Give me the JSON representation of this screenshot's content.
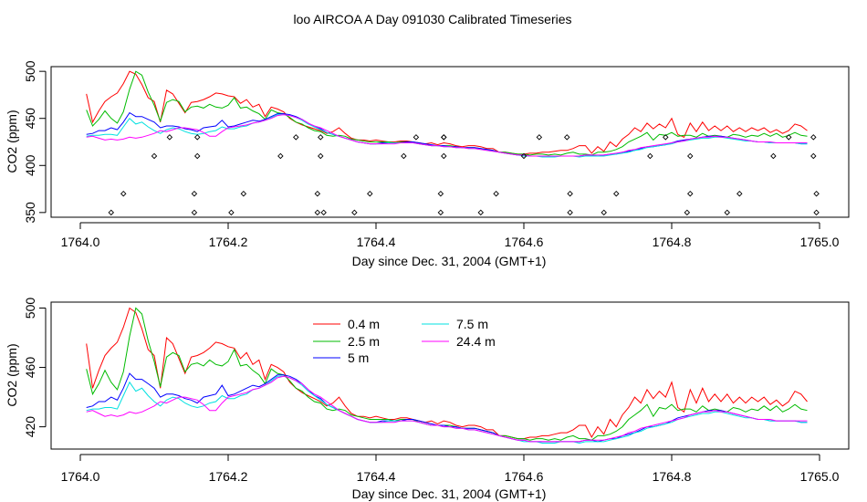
{
  "title": "loo AIRCOA A  Day 091030  Calibrated Timeseries",
  "colors": {
    "0.4 m": "#ff0000",
    "2.5 m": "#00bb00",
    "5 m": "#0000ff",
    "7.5 m": "#00e0e0",
    "24.4 m": "#ff00ff"
  },
  "chart_data": [
    {
      "type": "line",
      "xlabel": "Day since Dec. 31, 2004 (GMT+1)",
      "ylabel": "CO2 (ppm)",
      "xlim": [
        1764.0,
        1765.0
      ],
      "ylim": [
        345,
        505
      ],
      "xticks": [
        "1764.0",
        "1764.2",
        "1764.4",
        "1764.6",
        "1764.8",
        "1765.0"
      ],
      "yticks": [
        "350",
        "400",
        "450",
        "500"
      ],
      "x": [
        1764.0083,
        1764.0167,
        1764.025,
        1764.0333,
        1764.0417,
        1764.05,
        1764.0583,
        1764.0667,
        1764.075,
        1764.0833,
        1764.0917,
        1764.1,
        1764.1083,
        1764.1167,
        1764.125,
        1764.1333,
        1764.1417,
        1764.15,
        1764.1583,
        1764.1667,
        1764.175,
        1764.1833,
        1764.1917,
        1764.2,
        1764.2083,
        1764.2167,
        1764.225,
        1764.2333,
        1764.2417,
        1764.25,
        1764.2583,
        1764.2667,
        1764.275,
        1764.2833,
        1764.2917,
        1764.3,
        1764.3083,
        1764.3167,
        1764.325,
        1764.3333,
        1764.3417,
        1764.35,
        1764.3583,
        1764.3667,
        1764.375,
        1764.3833,
        1764.3917,
        1764.4,
        1764.4083,
        1764.4167,
        1764.425,
        1764.4333,
        1764.4417,
        1764.45,
        1764.4583,
        1764.4667,
        1764.475,
        1764.4833,
        1764.4917,
        1764.5,
        1764.5083,
        1764.5167,
        1764.525,
        1764.5333,
        1764.5417,
        1764.55,
        1764.5583,
        1764.5667,
        1764.575,
        1764.5833,
        1764.5917,
        1764.6,
        1764.6083,
        1764.6167,
        1764.625,
        1764.6333,
        1764.6417,
        1764.65,
        1764.6583,
        1764.6667,
        1764.675,
        1764.6833,
        1764.6917,
        1764.7,
        1764.7083,
        1764.7167,
        1764.725,
        1764.7333,
        1764.7417,
        1764.75,
        1764.7583,
        1764.7667,
        1764.775,
        1764.7833,
        1764.7917,
        1764.8,
        1764.8083,
        1764.8167,
        1764.825,
        1764.8333,
        1764.8417,
        1764.85,
        1764.8583,
        1764.8667,
        1764.875,
        1764.8833,
        1764.8917,
        1764.9,
        1764.9083,
        1764.9167,
        1764.925,
        1764.9333,
        1764.9417,
        1764.95,
        1764.9583,
        1764.9667,
        1764.975,
        1764.9833
      ],
      "series": [
        {
          "name": "0.4 m",
          "values": [
            476,
            446,
            458,
            468,
            473,
            477,
            487,
            500,
            497,
            486,
            472,
            468,
            446,
            480,
            476,
            466,
            456,
            467,
            468,
            470,
            473,
            477,
            476,
            474,
            473,
            466,
            470,
            462,
            465,
            452,
            462,
            460,
            457,
            450,
            446,
            443,
            441,
            439,
            437,
            434,
            436,
            440,
            434,
            429,
            427,
            427,
            426,
            427,
            426,
            425,
            425,
            426,
            426,
            425,
            424,
            423,
            424,
            422,
            424,
            423,
            421,
            420,
            421,
            421,
            420,
            418,
            418,
            414,
            414,
            413,
            412,
            412,
            413,
            413,
            414,
            414,
            415,
            416,
            416,
            418,
            421,
            421,
            413,
            420,
            415,
            425,
            420,
            428,
            433,
            440,
            436,
            445,
            439,
            444,
            440,
            450,
            433,
            430,
            445,
            436,
            446,
            437,
            442,
            437,
            442,
            436,
            440,
            436,
            440,
            437,
            440,
            435,
            438,
            434,
            437,
            444,
            442,
            437
          ]
        },
        {
          "name": "2.5 m",
          "values": [
            459,
            442,
            449,
            458,
            450,
            445,
            457,
            481,
            500,
            496,
            478,
            464,
            447,
            467,
            470,
            468,
            457,
            462,
            463,
            461,
            465,
            462,
            461,
            464,
            472,
            461,
            462,
            458,
            455,
            449,
            459,
            456,
            455,
            451,
            446,
            444,
            440,
            437,
            436,
            432,
            431,
            432,
            431,
            428,
            427,
            426,
            425,
            425,
            425,
            425,
            424,
            425,
            425,
            425,
            423,
            422,
            421,
            421,
            421,
            421,
            420,
            419,
            419,
            419,
            418,
            417,
            416,
            414,
            414,
            413,
            412,
            412,
            411,
            412,
            412,
            411,
            412,
            411,
            413,
            414,
            412,
            412,
            411,
            414,
            414,
            415,
            417,
            420,
            425,
            428,
            431,
            435,
            427,
            433,
            432,
            435,
            431,
            432,
            432,
            430,
            434,
            431,
            432,
            431,
            430,
            433,
            432,
            430,
            432,
            431,
            434,
            431,
            434,
            430,
            432,
            435,
            432,
            431
          ]
        },
        {
          "name": "5 m",
          "values": [
            433,
            434,
            437,
            437,
            440,
            438,
            446,
            456,
            452,
            452,
            449,
            446,
            440,
            442,
            442,
            441,
            439,
            438,
            436,
            440,
            441,
            442,
            448,
            441,
            442,
            444,
            446,
            448,
            447,
            449,
            452,
            455,
            455,
            454,
            452,
            449,
            445,
            441,
            439,
            435,
            433,
            431,
            429,
            427,
            425,
            424,
            423,
            423,
            424,
            424,
            424,
            424,
            425,
            425,
            424,
            423,
            422,
            421,
            421,
            420,
            420,
            419,
            419,
            419,
            418,
            417,
            416,
            414,
            413,
            412,
            411,
            411,
            410,
            410,
            410,
            410,
            410,
            410,
            410,
            410,
            410,
            411,
            411,
            410,
            411,
            412,
            412,
            414,
            415,
            416,
            418,
            420,
            420,
            421,
            422,
            424,
            426,
            427,
            428,
            429,
            430,
            431,
            431,
            431,
            430,
            429,
            428,
            427,
            426,
            425,
            425,
            424,
            424,
            424,
            424,
            424,
            423,
            423
          ]
        },
        {
          "name": "7.5 m",
          "values": [
            431,
            432,
            432,
            433,
            433,
            432,
            441,
            450,
            444,
            446,
            441,
            437,
            434,
            438,
            440,
            439,
            436,
            434,
            433,
            434,
            436,
            437,
            441,
            439,
            439,
            441,
            442,
            445,
            446,
            448,
            451,
            454,
            454,
            453,
            451,
            448,
            444,
            441,
            438,
            435,
            433,
            431,
            429,
            427,
            425,
            424,
            423,
            423,
            423,
            424,
            424,
            424,
            424,
            424,
            423,
            422,
            421,
            421,
            420,
            420,
            419,
            419,
            418,
            418,
            417,
            416,
            415,
            414,
            413,
            412,
            411,
            410,
            410,
            410,
            409,
            409,
            409,
            410,
            410,
            410,
            409,
            410,
            410,
            410,
            410,
            411,
            412,
            413,
            414,
            416,
            417,
            419,
            420,
            421,
            422,
            423,
            425,
            426,
            427,
            428,
            429,
            429,
            430,
            430,
            429,
            428,
            427,
            426,
            426,
            425,
            425,
            424,
            424,
            424,
            424,
            424,
            423,
            423
          ]
        },
        {
          "name": "24.4 m",
          "values": [
            430,
            431,
            429,
            427,
            428,
            427,
            428,
            430,
            429,
            430,
            432,
            434,
            437,
            436,
            438,
            440,
            440,
            439,
            438,
            435,
            431,
            431,
            436,
            440,
            441,
            442,
            443,
            445,
            446,
            448,
            450,
            453,
            454,
            453,
            451,
            449,
            445,
            442,
            440,
            437,
            434,
            431,
            429,
            427,
            425,
            424,
            423,
            423,
            423,
            423,
            423,
            424,
            424,
            424,
            423,
            422,
            421,
            421,
            420,
            420,
            419,
            419,
            418,
            418,
            417,
            416,
            415,
            414,
            413,
            412,
            411,
            411,
            410,
            410,
            410,
            410,
            410,
            410,
            410,
            410,
            410,
            411,
            411,
            411,
            411,
            412,
            413,
            414,
            416,
            417,
            419,
            420,
            421,
            422,
            423,
            424,
            425,
            426,
            428,
            429,
            430,
            430,
            431,
            430,
            430,
            429,
            428,
            427,
            426,
            425,
            425,
            425,
            424,
            424,
            424,
            424,
            424,
            424
          ]
        }
      ],
      "points": {
        "x": [
          1764.0417,
          1764.0583,
          1764.1,
          1764.1208,
          1764.1542,
          1764.1542,
          1764.1583,
          1764.1583,
          1764.2042,
          1764.2208,
          1764.2708,
          1764.2917,
          1764.3208,
          1764.3208,
          1764.325,
          1764.325,
          1764.3292,
          1764.3708,
          1764.3917,
          1764.4375,
          1764.4542,
          1764.4875,
          1764.4875,
          1764.4917,
          1764.4917,
          1764.4917,
          1764.5417,
          1764.5625,
          1764.6,
          1764.6208,
          1764.6583,
          1764.6625,
          1764.6625,
          1764.7083,
          1764.725,
          1764.7708,
          1764.7917,
          1764.8208,
          1764.825,
          1764.825,
          1764.875,
          1764.8917,
          1764.9375,
          1764.9583,
          1764.9917,
          1764.9917,
          1764.9958,
          1764.9958
        ],
        "y": [
          350,
          370,
          410,
          430,
          350,
          370,
          410,
          430,
          350,
          370,
          410,
          430,
          350,
          370,
          410,
          430,
          350,
          350,
          370,
          410,
          430,
          350,
          370,
          410,
          430,
          430,
          350,
          370,
          410,
          430,
          430,
          370,
          350,
          350,
          370,
          410,
          430,
          350,
          370,
          410,
          350,
          370,
          410,
          430,
          430,
          410,
          370,
          350
        ]
      }
    },
    {
      "type": "line",
      "xlabel": "Day since Dec. 31, 2004 (GMT+1)",
      "ylabel": "CO2 (ppm)",
      "xlim": [
        1764.0,
        1765.0
      ],
      "ylim": [
        405,
        504
      ],
      "xticks": [
        "1764.0",
        "1764.2",
        "1764.4",
        "1764.6",
        "1764.8",
        "1765.0"
      ],
      "yticks": [
        "420",
        "460",
        "500"
      ],
      "legend": [
        "0.4 m",
        "2.5 m",
        "5 m",
        "7.5 m",
        "24.4 m"
      ],
      "legend_placement": "top-left",
      "same_series_as_panel": 0
    }
  ]
}
